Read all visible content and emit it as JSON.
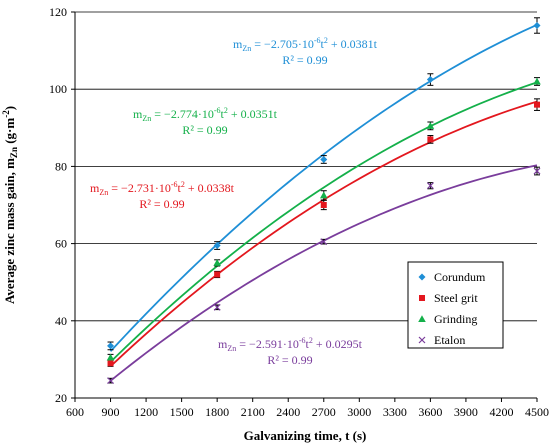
{
  "chart_data": {
    "type": "scatter",
    "title": "",
    "xlabel": "Galvanizing time, t (s)",
    "ylabel": "Average zinc mass gain, m",
    "ylabel_sub": "Zn",
    "ylabel_unit": " (g·m",
    "ylabel_sup": "-2",
    "ylabel_end": ")",
    "xlim": [
      600,
      4500
    ],
    "ylim": [
      20,
      120
    ],
    "x_ticks": [
      600,
      900,
      1200,
      1500,
      1800,
      2100,
      2400,
      2700,
      3000,
      3300,
      3600,
      3900,
      4200,
      4500
    ],
    "y_ticks": [
      20,
      40,
      60,
      80,
      100,
      120
    ],
    "grid": "horizontal",
    "legend_position": "right",
    "series": [
      {
        "name": "Corundum",
        "color": "#1f8fd6",
        "marker": "diamond",
        "x": [
          900,
          1800,
          2700,
          3600,
          4500
        ],
        "y": [
          33.5,
          59.5,
          81.8,
          102.5,
          116.5
        ],
        "err": [
          1.0,
          1.0,
          1.0,
          1.5,
          2.0
        ],
        "fit": {
          "a": -2.705e-06,
          "b": 0.0381
        },
        "equation": {
          "m": "m",
          "sub": "Zn",
          "pre": " = −2.705·10",
          "exp": "-6",
          "post_t": "t",
          "post_exp": "2",
          "tail": " + 0.0381t"
        },
        "r2": "R² = 0.99"
      },
      {
        "name": "Steel grit",
        "color": "#e3171e",
        "marker": "square",
        "x": [
          900,
          1800,
          2700,
          3600,
          4500
        ],
        "y": [
          29.0,
          52.0,
          70.0,
          87.0,
          96.0
        ],
        "err": [
          0.8,
          0.8,
          1.2,
          1.0,
          1.5
        ],
        "fit": {
          "a": -2.731e-06,
          "b": 0.0338
        },
        "equation": {
          "m": "m",
          "sub": "Zn",
          "pre": " = −2.731·10",
          "exp": "-6",
          "post_t": "t",
          "post_exp": "2",
          "tail": " + 0.0338t"
        },
        "r2": "R² = 0.99"
      },
      {
        "name": "Grinding",
        "color": "#14b04a",
        "marker": "triangle",
        "x": [
          900,
          1800,
          2700,
          3600,
          4500
        ],
        "y": [
          30.5,
          55.0,
          72.5,
          90.5,
          102.0
        ],
        "err": [
          0.8,
          0.8,
          1.2,
          1.0,
          1.0
        ],
        "fit": {
          "a": -2.774e-06,
          "b": 0.0351
        },
        "equation": {
          "m": "m",
          "sub": "Zn",
          "pre": " = −2.774·10",
          "exp": "-6",
          "post_t": "t",
          "post_exp": "2",
          "tail": " + 0.0351t"
        },
        "r2": "R² = 0.99"
      },
      {
        "name": "Etalon",
        "color": "#7a3d9c",
        "marker": "x",
        "x": [
          900,
          1800,
          2700,
          3600,
          4500
        ],
        "y": [
          24.5,
          43.5,
          60.5,
          75.0,
          78.8
        ],
        "err": [
          0.6,
          0.6,
          0.6,
          0.8,
          1.0
        ],
        "fit": {
          "a": -2.591e-06,
          "b": 0.0295
        },
        "equation": {
          "m": "m",
          "sub": "Zn",
          "pre": " = −2.591·10",
          "exp": "-6",
          "post_t": "t",
          "post_exp": "2",
          "tail": " + 0.0295t"
        },
        "r2": "R² = 0.99"
      }
    ]
  }
}
